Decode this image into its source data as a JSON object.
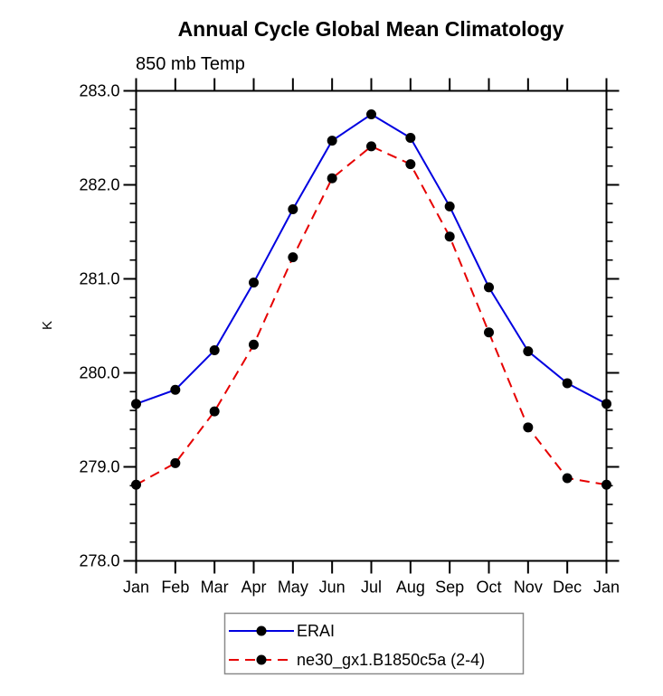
{
  "page": {
    "background": "#ffffff"
  },
  "chart_data": {
    "type": "line",
    "title": "Annual Cycle Global Mean Climatology",
    "subtitle": "850 mb Temp",
    "ylabel": "K",
    "xlabel": "",
    "ylim": [
      278.0,
      283.0
    ],
    "ytick_interval": 1.0,
    "yminor_interval": 0.2,
    "ytick_labels": [
      "278.0",
      "279.0",
      "280.0",
      "281.0",
      "282.0",
      "283.0"
    ],
    "categories": [
      "Jan",
      "Feb",
      "Mar",
      "Apr",
      "May",
      "Jun",
      "Jul",
      "Aug",
      "Sep",
      "Oct",
      "Nov",
      "Dec",
      "Jan"
    ],
    "series": [
      {
        "name": "ERAI",
        "color": "#0000e0",
        "line_style": "solid",
        "marker": "filled-circle",
        "marker_color": "#000000",
        "values": [
          279.67,
          279.82,
          280.24,
          280.96,
          281.74,
          282.47,
          282.75,
          282.5,
          281.77,
          280.91,
          280.23,
          279.89,
          279.67
        ]
      },
      {
        "name": "ne30_gx1.B1850c5a (2-4)",
        "color": "#e60000",
        "line_style": "dashed",
        "marker": "filled-circle",
        "marker_color": "#000000",
        "values": [
          278.81,
          279.04,
          279.59,
          280.3,
          281.23,
          282.07,
          282.41,
          282.22,
          281.45,
          280.43,
          279.42,
          278.88,
          278.81
        ]
      }
    ],
    "legend": {
      "position": "bottom-center",
      "border": true
    },
    "grid": false,
    "frame": "box-with-outward-ticks"
  }
}
